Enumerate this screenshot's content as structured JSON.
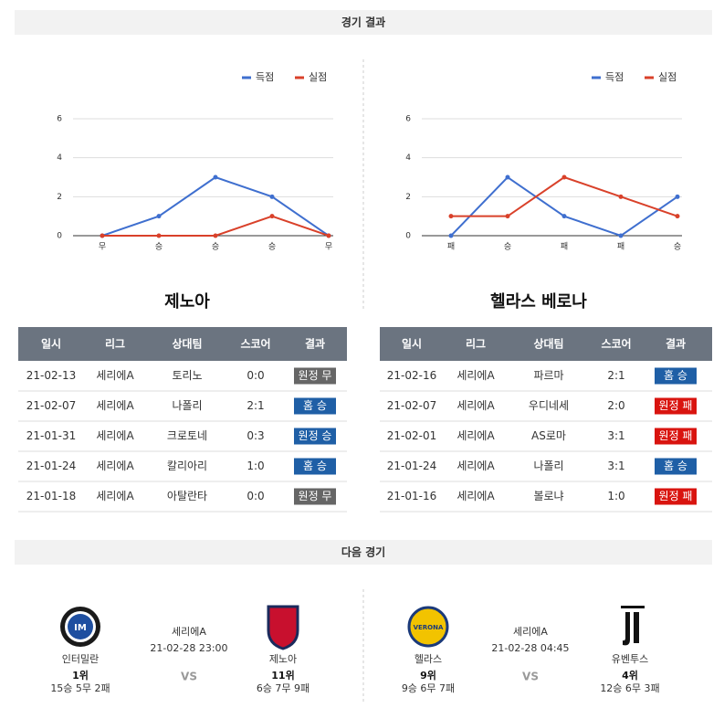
{
  "sections": {
    "results_title": "경기 결과",
    "next_title": "다음 경기"
  },
  "chart_data": [
    {
      "type": "line",
      "categories": [
        "무",
        "승",
        "승",
        "승",
        "무"
      ],
      "series": [
        {
          "name": "득점",
          "color": "#3f6fcf",
          "values": [
            0,
            1,
            3,
            2,
            0
          ]
        },
        {
          "name": "실점",
          "color": "#d9412a",
          "values": [
            0,
            0,
            0,
            1,
            0
          ]
        }
      ],
      "ylim": [
        0,
        6
      ],
      "yticks": [
        0,
        2,
        4,
        6
      ],
      "grid": true,
      "legend": "top-right"
    },
    {
      "type": "line",
      "categories": [
        "패",
        "승",
        "패",
        "패",
        "승"
      ],
      "series": [
        {
          "name": "득점",
          "color": "#3f6fcf",
          "values": [
            0,
            3,
            1,
            0,
            2
          ]
        },
        {
          "name": "실점",
          "color": "#d9412a",
          "values": [
            1,
            1,
            3,
            2,
            1
          ]
        }
      ],
      "ylim": [
        0,
        6
      ],
      "yticks": [
        0,
        2,
        4,
        6
      ],
      "grid": true,
      "legend": "top-right"
    }
  ],
  "teams": [
    {
      "name": "제노아",
      "headers": [
        "일시",
        "리그",
        "상대팀",
        "스코어",
        "결과"
      ],
      "rows": [
        [
          "21-02-13",
          "세리에A",
          "토리노",
          "0:0",
          "원정 무"
        ],
        [
          "21-02-07",
          "세리에A",
          "나폴리",
          "2:1",
          "홈 승"
        ],
        [
          "21-01-31",
          "세리에A",
          "크로토네",
          "0:3",
          "원정 승"
        ],
        [
          "21-01-24",
          "세리에A",
          "칼리아리",
          "1:0",
          "홈 승"
        ],
        [
          "21-01-18",
          "세리에A",
          "아탈란타",
          "0:0",
          "원정 무"
        ]
      ],
      "result_colors": [
        "#666666",
        "#1f5fa6",
        "#1f5fa6",
        "#1f5fa6",
        "#666666"
      ]
    },
    {
      "name": "헬라스 베로나",
      "headers": [
        "일시",
        "리그",
        "상대팀",
        "스코어",
        "결과"
      ],
      "rows": [
        [
          "21-02-16",
          "세리에A",
          "파르마",
          "2:1",
          "홈 승"
        ],
        [
          "21-02-07",
          "세리에A",
          "우디네세",
          "2:0",
          "원정 패"
        ],
        [
          "21-02-01",
          "세리에A",
          "AS로마",
          "3:1",
          "원정 패"
        ],
        [
          "21-01-24",
          "세리에A",
          "나폴리",
          "3:1",
          "홈 승"
        ],
        [
          "21-01-16",
          "세리에A",
          "볼로냐",
          "1:0",
          "원정 패"
        ]
      ],
      "result_colors": [
        "#1f5fa6",
        "#d9140f",
        "#d9140f",
        "#1f5fa6",
        "#d9140f"
      ]
    }
  ],
  "next_matches": [
    {
      "league": "세리에A",
      "datetime": "21-02-28 23:00",
      "vs": "VS",
      "home": {
        "name": "인터밀란",
        "rank": "1위",
        "record": "15승 5무 2패"
      },
      "away": {
        "name": "제노아",
        "rank": "11위",
        "record": "6승 7무 9패"
      }
    },
    {
      "league": "세리에A",
      "datetime": "21-02-28 04:45",
      "vs": "VS",
      "home": {
        "name": "헬라스",
        "rank": "9위",
        "record": "9승 6무 7패"
      },
      "away": {
        "name": "유벤투스",
        "rank": "4위",
        "record": "12승 6무 3패"
      }
    }
  ]
}
